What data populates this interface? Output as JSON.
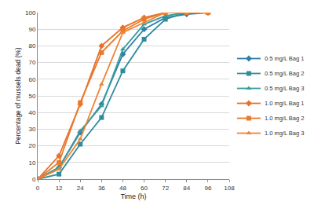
{
  "chart_data": {
    "type": "line",
    "x_label": "Time (h)",
    "y_label": "Percentage of mussels dead (%)",
    "x": [
      0,
      12,
      24,
      36,
      48,
      60,
      72,
      84,
      96
    ],
    "series": [
      {
        "name": "0.5 mg/L Bag 1",
        "color": "#2f7fa8",
        "marker": "diamond",
        "values": [
          0,
          7,
          28,
          45,
          75,
          90,
          97,
          99,
          100
        ]
      },
      {
        "name": "0.5 mg/L Bag 2",
        "color": "#2e8c9e",
        "marker": "square",
        "values": [
          0,
          3,
          21,
          37,
          65,
          84,
          96,
          100,
          100
        ]
      },
      {
        "name": "0.5 mg/L Bag 3",
        "color": "#3a9c9c",
        "marker": "triangle",
        "values": [
          0,
          7,
          29,
          44,
          78,
          93,
          98,
          100,
          100
        ]
      },
      {
        "name": "1.0 mg/L Bag 1",
        "color": "#e8702a",
        "marker": "diamond",
        "values": [
          0,
          14,
          45,
          80,
          91,
          97,
          100,
          100,
          100
        ]
      },
      {
        "name": "1.0 mg/L Bag 2",
        "color": "#e97a2c",
        "marker": "square",
        "values": [
          0,
          10,
          46,
          76,
          89,
          96,
          100,
          100,
          100
        ]
      },
      {
        "name": "1.0 mg/L Bag 3",
        "color": "#f08535",
        "marker": "triangle",
        "values": [
          0,
          6,
          24,
          57,
          88,
          94,
          100,
          100,
          100
        ]
      }
    ],
    "xlim": [
      0,
      108
    ],
    "xticks": [
      0,
      12,
      24,
      36,
      48,
      60,
      72,
      84,
      96,
      108
    ],
    "ylim": [
      0,
      100
    ],
    "yticks": [
      0,
      10,
      20,
      30,
      40,
      50,
      60,
      70,
      80,
      90,
      100
    ],
    "grid": true,
    "legend": "right"
  }
}
